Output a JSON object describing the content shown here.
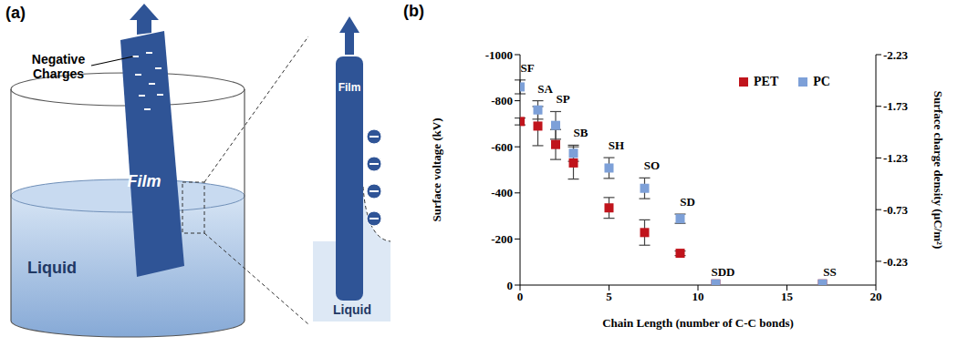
{
  "diagram": {
    "panel_label": "(a)",
    "callout": "Negative Charges",
    "film_label": "Film",
    "liquid_label": "Liquid",
    "inset": {
      "film_label": "Film",
      "liquid_label": "Liquid"
    }
  },
  "chart_data": {
    "type": "scatter",
    "panel_label": "(b)",
    "x_label": "Chain Length (number of C-C bonds)",
    "y_label": "Surface voltage (kV)",
    "y2_label": "Surface charge density (µC/m²)",
    "x": [
      0,
      1,
      2,
      3,
      5,
      7,
      9,
      11,
      17
    ],
    "point_labels": [
      "SF",
      "SA",
      "SP",
      "SB",
      "SH",
      "SO",
      "SD",
      "SDD",
      "SS"
    ],
    "series": [
      {
        "name": "PET",
        "color": "#c0141c",
        "marker": "square",
        "values": [
          -710,
          -690,
          -610,
          -530,
          -335,
          -228,
          -138,
          -5,
          -5
        ],
        "errors": [
          15,
          85,
          65,
          70,
          45,
          55,
          10,
          0,
          0
        ]
      },
      {
        "name": "PC",
        "color": "#7da0d8",
        "marker": "square",
        "values": [
          -860,
          -760,
          -693,
          -572,
          -508,
          -420,
          -288,
          -5,
          -5
        ],
        "errors": [
          30,
          40,
          60,
          35,
          45,
          45,
          20,
          0,
          0
        ]
      }
    ],
    "xlim": [
      0,
      20
    ],
    "xticks": [
      0,
      5,
      10,
      15,
      20
    ],
    "ylim": [
      0,
      -1000
    ],
    "yticks": [
      0,
      -200,
      -400,
      -600,
      -800,
      -1000
    ],
    "y2lim": [
      0,
      -2.23
    ],
    "y2ticks": [
      -0.23,
      -0.73,
      -1.23,
      -1.73,
      -2.23
    ],
    "legend": "upper right"
  }
}
